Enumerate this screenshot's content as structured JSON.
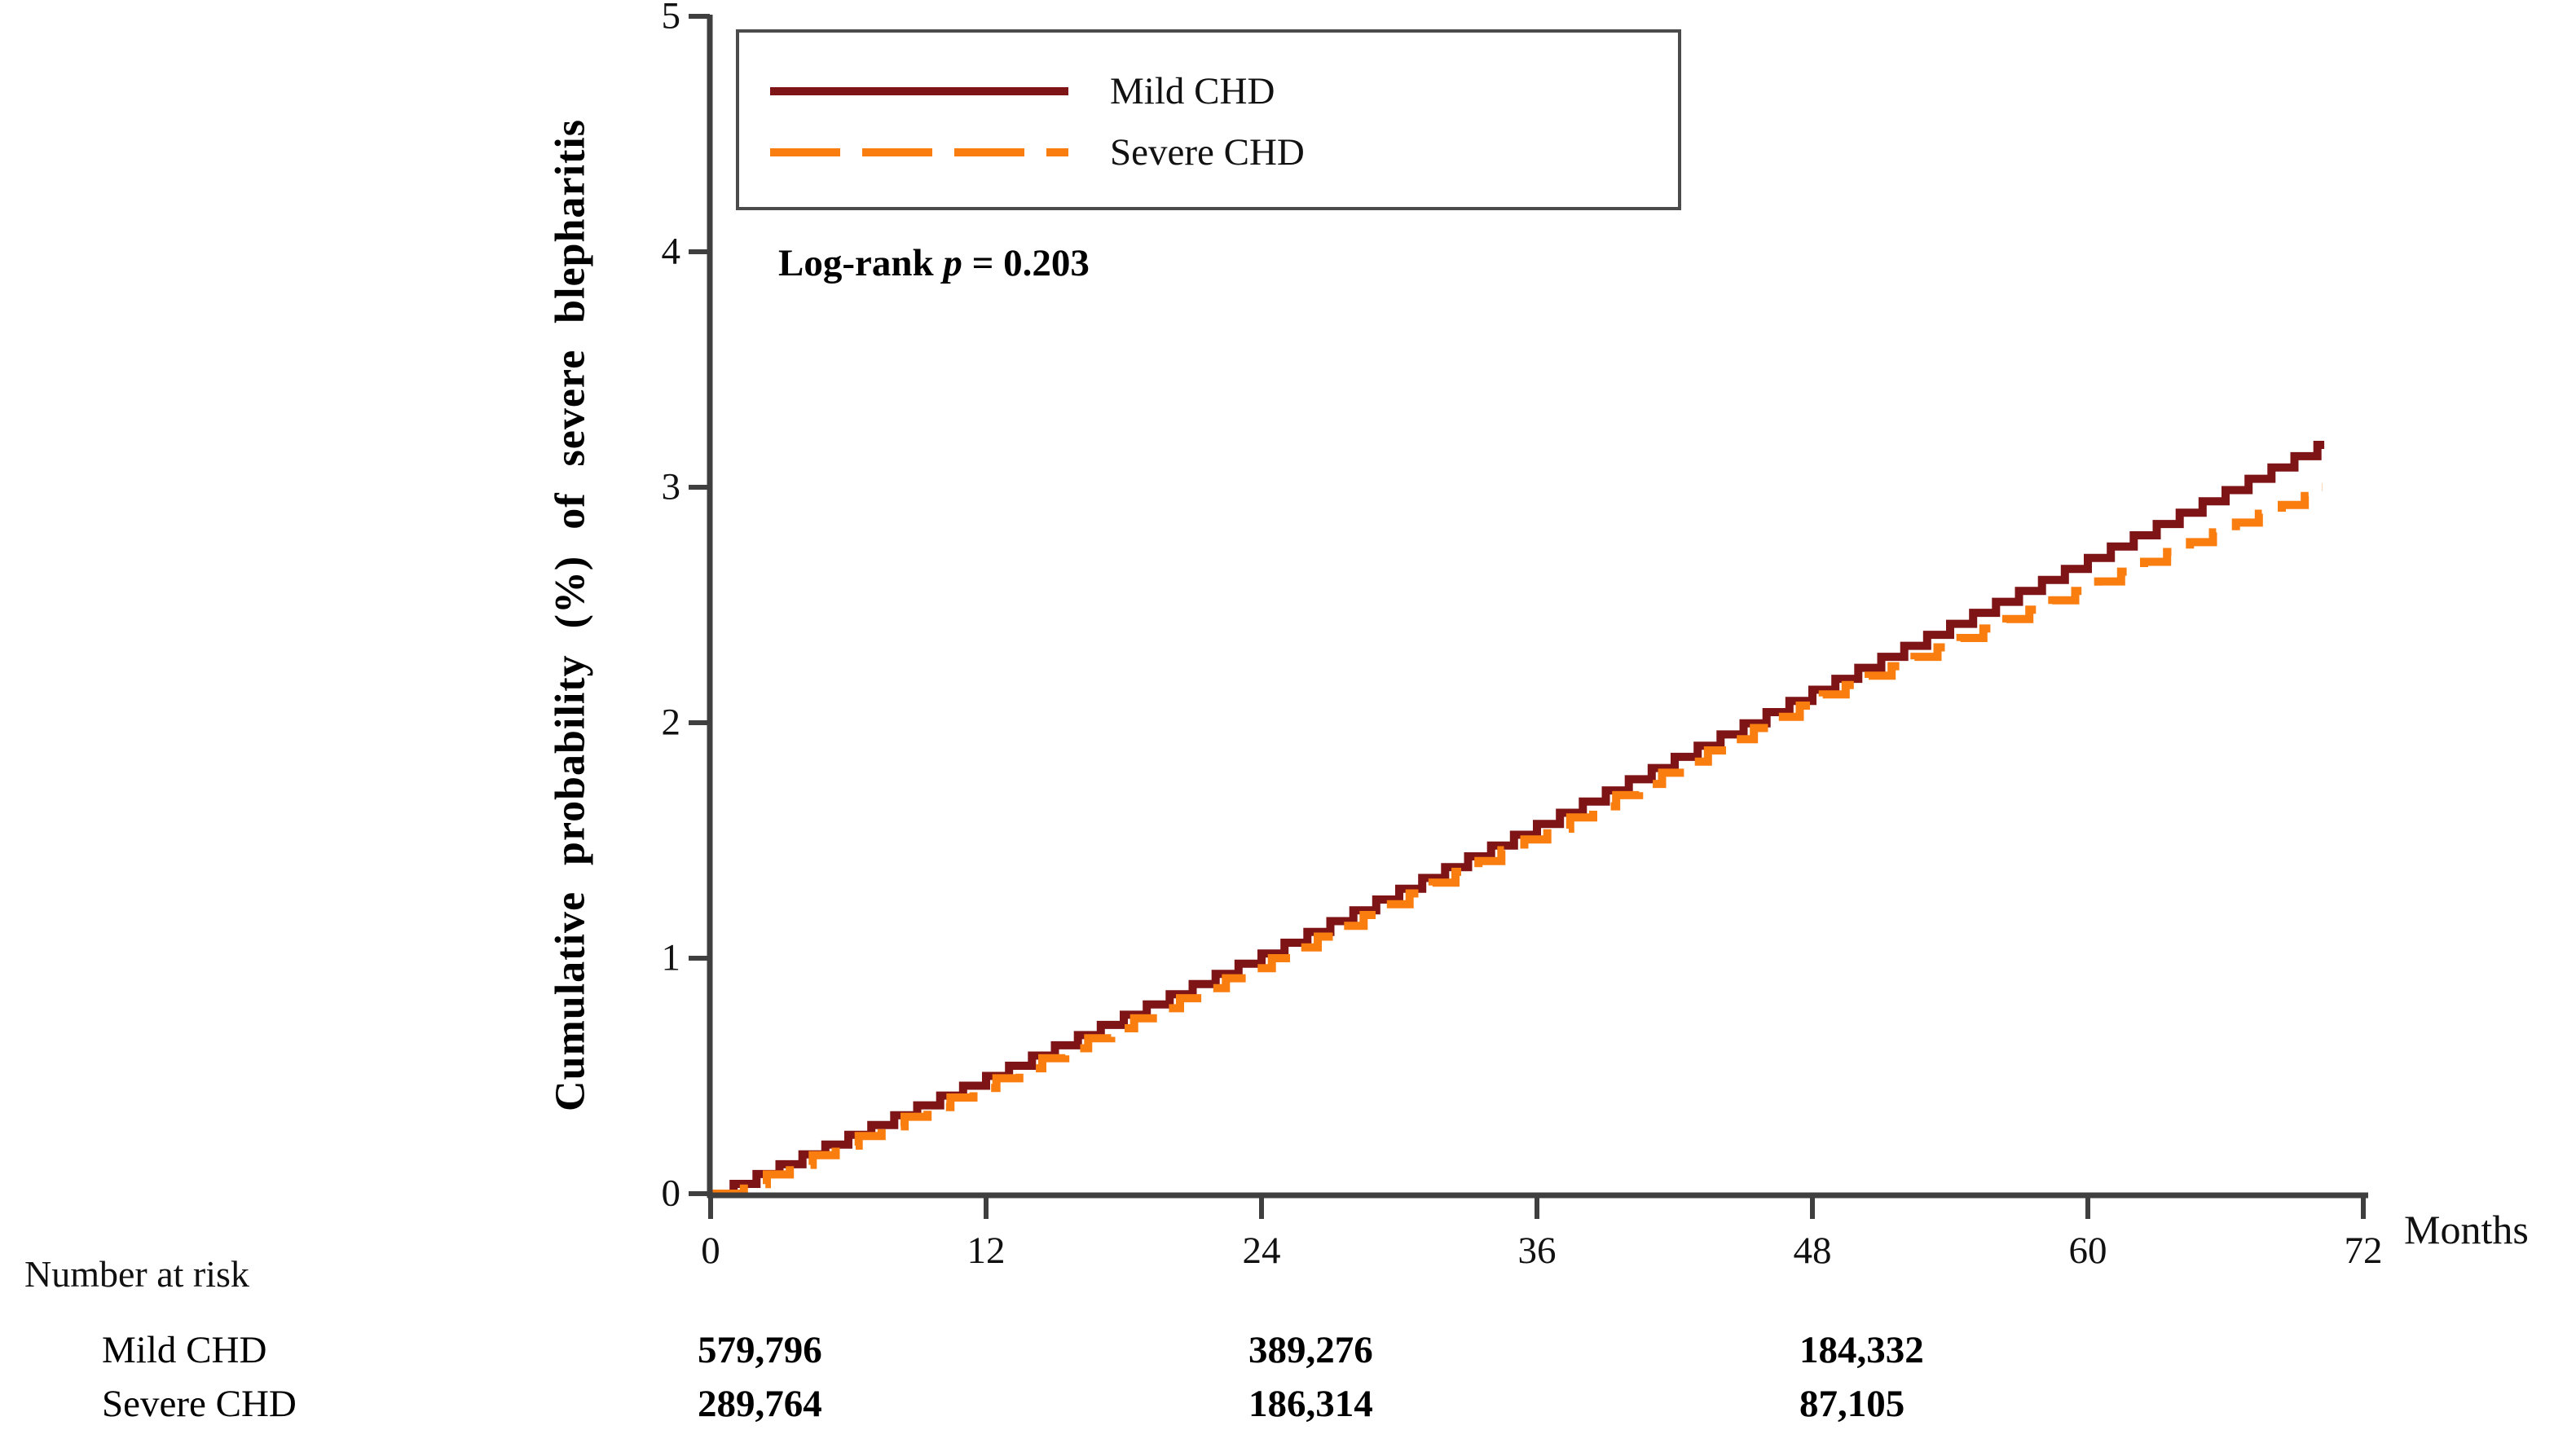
{
  "figure": {
    "y_axis_title": "Cumulative probability (%) of severe blepharitis",
    "x_axis_unit": "Months",
    "log_rank": {
      "prefix": "Log-rank ",
      "p_symbol": "p",
      "value_text": " = 0.203"
    },
    "legend": {
      "items": [
        {
          "label": "Mild CHD",
          "color": "#7E1416",
          "line_style": "solid"
        },
        {
          "label": "Severe CHD",
          "color": "#FA7D10",
          "line_style": "dashed"
        }
      ]
    }
  },
  "chart_data": {
    "type": "line",
    "subtype": "step-cumulative-incidence",
    "title": "",
    "xlabel": "Months",
    "ylabel": "Cumulative probability (%) of severe blepharitis",
    "xlim": [
      0,
      72
    ],
    "ylim": [
      0,
      5
    ],
    "x_ticks": [
      0,
      12,
      24,
      36,
      48,
      60,
      72
    ],
    "y_ticks": [
      0,
      1,
      2,
      3,
      4,
      5
    ],
    "grid": false,
    "legend_position": "top-left-inside",
    "annotation": "Log-rank p = 0.203",
    "series": [
      {
        "name": "Mild CHD",
        "color": "#7E1416",
        "line": "solid",
        "end_month": 70.3,
        "points": [
          [
            0,
            0
          ],
          [
            12,
            0.5
          ],
          [
            24,
            1.02
          ],
          [
            36,
            1.57
          ],
          [
            48,
            2.14
          ],
          [
            60,
            2.7
          ],
          [
            70,
            3.18
          ]
        ]
      },
      {
        "name": "Severe CHD",
        "color": "#FA7D10",
        "line": "dashed",
        "end_month": 70.2,
        "points": [
          [
            0,
            0
          ],
          [
            12,
            0.49
          ],
          [
            24,
            1.0
          ],
          [
            36,
            1.55
          ],
          [
            48,
            2.12
          ],
          [
            54,
            2.36
          ],
          [
            60,
            2.6
          ],
          [
            66,
            2.85
          ],
          [
            70,
            3.0
          ]
        ]
      }
    ],
    "number_at_risk": {
      "title": "Number at risk",
      "time_points": [
        0,
        24,
        48
      ],
      "rows": [
        {
          "label": "Mild CHD",
          "values": [
            "579,796",
            "389,276",
            "184,332"
          ]
        },
        {
          "label": "Severe CHD",
          "values": [
            "289,764",
            "186,314",
            "87,105"
          ]
        }
      ]
    }
  }
}
